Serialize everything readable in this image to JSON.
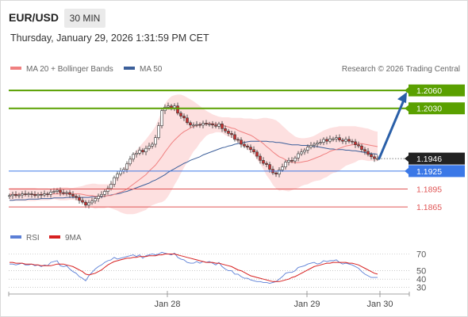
{
  "header": {
    "symbol": "EUR/USD",
    "timeframe": "30 MIN",
    "timestamp": "Thursday, January 29, 2026 1:31:59 PM CET"
  },
  "legend": {
    "ma20_label": "MA 20 + Bollinger Bands",
    "ma50_label": "MA 50",
    "copyright": "Research © 2026 Trading Central"
  },
  "rsi_legend": {
    "rsi_label": "RSI",
    "ma_label": "9MA"
  },
  "colors": {
    "resistance": "#5aa000",
    "pivot": "#3b78e7",
    "support": "#e05555",
    "last_price_bg": "#222222",
    "arrow": "#2a5fa8",
    "ma20": "#f08080",
    "ma50": "#3c5f9a",
    "bollinger_fill": "#fde0e0",
    "candle_up": "#ffffff",
    "candle_down": "#c93030",
    "rsi": "#5b7fd6",
    "rsi_ma": "#d72020"
  },
  "chart_data": {
    "type": "candlestick",
    "y_range": [
      1.184,
      1.208
    ],
    "price_levels": [
      {
        "label": "1.2060",
        "value": 1.206,
        "kind": "resistance"
      },
      {
        "label": "1.2030",
        "value": 1.203,
        "kind": "resistance"
      },
      {
        "label": "1.1946",
        "value": 1.1946,
        "kind": "last"
      },
      {
        "label": "1.1925",
        "value": 1.1925,
        "kind": "pivot"
      },
      {
        "label": "1.1895",
        "value": 1.1895,
        "kind": "support"
      },
      {
        "label": "1.1865",
        "value": 1.1865,
        "kind": "support"
      }
    ],
    "x_ticks": [
      {
        "label": "Jan 28",
        "index": 49
      },
      {
        "label": "Jan 29",
        "index": 93
      },
      {
        "label": "Jan 30",
        "index": 116
      }
    ],
    "candles_total": 117,
    "closes": [
      1.1884,
      1.1886,
      1.1884,
      1.1885,
      1.1887,
      1.1886,
      1.1887,
      1.1886,
      1.1884,
      1.1886,
      1.1885,
      1.1887,
      1.1886,
      1.189,
      1.1891,
      1.1893,
      1.1889,
      1.1888,
      1.1889,
      1.1886,
      1.1883,
      1.1881,
      1.1876,
      1.1873,
      1.1868,
      1.1872,
      1.1875,
      1.1879,
      1.1883,
      1.1886,
      1.1891,
      1.1896,
      1.1903,
      1.1914,
      1.192,
      1.1925,
      1.1928,
      1.1937,
      1.1945,
      1.1953,
      1.1955,
      1.196,
      1.1957,
      1.1963,
      1.1967,
      1.197,
      1.1981,
      1.2001,
      1.2026,
      1.2032,
      1.2034,
      1.2031,
      1.2034,
      1.2022,
      1.2017,
      1.2014,
      1.2006,
      1.2002,
      1.2002,
      1.2003,
      1.2002,
      1.2005,
      1.2004,
      1.2004,
      1.2002,
      1.2,
      1.2004,
      1.1996,
      1.1992,
      1.1988,
      1.1986,
      1.1978,
      1.1977,
      1.197,
      1.1967,
      1.1965,
      1.1961,
      1.1957,
      1.195,
      1.1943,
      1.1938,
      1.1936,
      1.1928,
      1.1922,
      1.192,
      1.1927,
      1.1932,
      1.194,
      1.1943,
      1.1942,
      1.1947,
      1.1954,
      1.1957,
      1.196,
      1.1965,
      1.1968,
      1.197,
      1.1972,
      1.1973,
      1.1978,
      1.1975,
      1.1979,
      1.1979,
      1.1981,
      1.1977,
      1.1975,
      1.1978,
      1.1975,
      1.1974,
      1.1969,
      1.1967,
      1.1961,
      1.1958,
      1.1953,
      1.1949,
      1.1946,
      1.1946
    ],
    "ma20": [
      1.1886,
      1.1886,
      1.1886,
      1.1886,
      1.1886,
      1.1886,
      1.1886,
      1.1886,
      1.1886,
      1.1886,
      1.1886,
      1.1886,
      1.1886,
      1.1886,
      1.1887,
      1.1887,
      1.1887,
      1.1887,
      1.1887,
      1.1887,
      1.1887,
      1.1887,
      1.1887,
      1.1886,
      1.1885,
      1.1884,
      1.1884,
      1.1883,
      1.1883,
      1.1883,
      1.1883,
      1.1884,
      1.1884,
      1.1886,
      1.1888,
      1.189,
      1.1892,
      1.1895,
      1.1899,
      1.1903,
      1.1907,
      1.1911,
      1.1915,
      1.1919,
      1.1925,
      1.193,
      1.1935,
      1.1942,
      1.1949,
      1.1957,
      1.1964,
      1.1971,
      1.1977,
      1.1982,
      1.1987,
      1.1991,
      1.1994,
      1.1997,
      1.2,
      1.2001,
      1.2003,
      1.2004,
      1.2005,
      1.2005,
      1.2004,
      1.2004,
      1.2003,
      1.2002,
      1.2,
      1.1999,
      1.1997,
      1.1996,
      1.1993,
      1.1991,
      1.1989,
      1.1987,
      1.1985,
      1.1982,
      1.1978,
      1.1975,
      1.1971,
      1.1966,
      1.1962,
      1.1957,
      1.1953,
      1.1949,
      1.1947,
      1.1944,
      1.1941,
      1.194,
      1.1939,
      1.1939,
      1.194,
      1.1941,
      1.1942,
      1.1944,
      1.1946,
      1.1948,
      1.195,
      1.1953,
      1.1955,
      1.1958,
      1.196,
      1.1961,
      1.1963,
      1.1965,
      1.1967,
      1.1968,
      1.1969,
      1.197,
      1.1971,
      1.1971,
      1.197,
      1.1969,
      1.1968,
      1.1967,
      1.1966
    ],
    "bollinger_upper": [
      1.1897,
      1.1897,
      1.1897,
      1.1897,
      1.1897,
      1.1897,
      1.1897,
      1.1897,
      1.1897,
      1.1896,
      1.1896,
      1.1896,
      1.1896,
      1.1895,
      1.1896,
      1.1897,
      1.1898,
      1.1898,
      1.1898,
      1.1897,
      1.1897,
      1.1898,
      1.1899,
      1.19,
      1.1902,
      1.1903,
      1.1904,
      1.1904,
      1.1903,
      1.1903,
      1.1903,
      1.1903,
      1.1905,
      1.1911,
      1.1917,
      1.1924,
      1.193,
      1.1937,
      1.1945,
      1.1953,
      1.196,
      1.1966,
      1.1972,
      1.1978,
      1.1985,
      1.1992,
      1.2,
      1.2012,
      1.2025,
      1.2038,
      1.2045,
      1.205,
      1.2052,
      1.2053,
      1.2053,
      1.2051,
      1.2048,
      1.2045,
      1.2042,
      1.2038,
      1.2034,
      1.203,
      1.2026,
      1.2023,
      1.202,
      1.2018,
      1.2016,
      1.2015,
      1.2015,
      1.2015,
      1.2014,
      1.2014,
      1.2014,
      1.2014,
      1.2013,
      1.2013,
      1.2013,
      1.2012,
      1.2012,
      1.2013,
      1.2014,
      1.2014,
      1.2013,
      1.2012,
      1.201,
      1.2006,
      1.2001,
      1.1996,
      1.1991,
      1.1987,
      1.1983,
      1.1981,
      1.198,
      1.198,
      1.1981,
      1.1982,
      1.1984,
      1.1987,
      1.199,
      1.1993,
      1.1995,
      1.1997,
      1.1998,
      1.1999,
      1.2,
      1.2,
      1.2,
      1.2,
      1.2,
      1.2,
      1.1999,
      1.1998,
      1.1997,
      1.1996,
      1.1994,
      1.1992,
      1.1991
    ],
    "bollinger_lower": [
      1.1875,
      1.1875,
      1.1875,
      1.1875,
      1.1875,
      1.1875,
      1.1875,
      1.1875,
      1.1875,
      1.1876,
      1.1876,
      1.1876,
      1.1876,
      1.1877,
      1.1878,
      1.1877,
      1.1876,
      1.1876,
      1.1876,
      1.1877,
      1.1877,
      1.1876,
      1.1875,
      1.1872,
      1.1868,
      1.1865,
      1.1864,
      1.1862,
      1.1863,
      1.1863,
      1.1863,
      1.1865,
      1.1863,
      1.1861,
      1.1859,
      1.1856,
      1.1854,
      1.1853,
      1.1853,
      1.1853,
      1.1854,
      1.1856,
      1.1858,
      1.186,
      1.1865,
      1.1868,
      1.187,
      1.1872,
      1.1873,
      1.1876,
      1.1883,
      1.1892,
      1.1902,
      1.1911,
      1.1921,
      1.1931,
      1.194,
      1.1949,
      1.1958,
      1.1964,
      1.1972,
      1.1978,
      1.1984,
      1.1987,
      1.1988,
      1.199,
      1.199,
      1.1989,
      1.1985,
      1.1983,
      1.198,
      1.1978,
      1.1972,
      1.1968,
      1.1965,
      1.1961,
      1.1957,
      1.1952,
      1.1944,
      1.1937,
      1.1928,
      1.1918,
      1.1911,
      1.1902,
      1.1896,
      1.1892,
      1.1893,
      1.1892,
      1.1891,
      1.1893,
      1.1895,
      1.1897,
      1.19,
      1.1902,
      1.1903,
      1.1906,
      1.1908,
      1.1909,
      1.191,
      1.1913,
      1.1915,
      1.1919,
      1.1922,
      1.1923,
      1.1926,
      1.193,
      1.1934,
      1.1936,
      1.1938,
      1.194,
      1.1943,
      1.1944,
      1.1943,
      1.1942,
      1.1942,
      1.1942,
      1.1941
    ],
    "ma50": [
      1.1876,
      1.1876,
      1.1877,
      1.1877,
      1.1877,
      1.1877,
      1.1878,
      1.1878,
      1.1878,
      1.1878,
      1.1879,
      1.1879,
      1.1879,
      1.1879,
      1.188,
      1.188,
      1.188,
      1.188,
      1.1881,
      1.1881,
      1.1881,
      1.1881,
      1.1881,
      1.1881,
      1.1881,
      1.1881,
      1.1882,
      1.1882,
      1.1882,
      1.1882,
      1.1883,
      1.1884,
      1.1885,
      1.1886,
      1.1887,
      1.1888,
      1.189,
      1.1891,
      1.1893,
      1.1895,
      1.1897,
      1.1899,
      1.1901,
      1.1903,
      1.1905,
      1.1908,
      1.191,
      1.1913,
      1.1916,
      1.1919,
      1.1923,
      1.1926,
      1.1929,
      1.1932,
      1.1935,
      1.1938,
      1.194,
      1.1943,
      1.1945,
      1.1947,
      1.1949,
      1.1952,
      1.1954,
      1.1956,
      1.1958,
      1.196,
      1.1962,
      1.1964,
      1.1965,
      1.1967,
      1.1968,
      1.197,
      1.1971,
      1.1972,
      1.1973,
      1.1974,
      1.1975,
      1.1975,
      1.1975,
      1.1975,
      1.1975,
      1.1975,
      1.1974,
      1.1974,
      1.1973,
      1.1973,
      1.1972,
      1.1971,
      1.197,
      1.1969,
      1.1969,
      1.1969,
      1.1968,
      1.1968,
      1.1968,
      1.1967,
      1.1966,
      1.1966,
      1.1965,
      1.1964,
      1.1963,
      1.1962,
      1.1962,
      1.1961,
      1.1961,
      1.1961,
      1.196,
      1.196,
      1.1959,
      1.1959,
      1.1958,
      1.1957,
      1.1956,
      1.1955,
      1.1954,
      1.1954,
      1.1953
    ],
    "rsi": {
      "y_range": [
        25,
        80
      ],
      "ticks": [
        70,
        50,
        40,
        30
      ],
      "rsi_values": [
        58,
        58,
        57,
        58,
        59,
        57,
        57,
        58,
        56,
        57,
        55,
        57,
        56,
        60,
        61,
        62,
        56,
        55,
        56,
        52,
        49,
        47,
        43,
        41,
        38,
        44,
        48,
        52,
        55,
        57,
        60,
        62,
        63,
        66,
        64,
        65,
        66,
        67,
        68,
        69,
        67,
        69,
        65,
        68,
        69,
        70,
        69,
        70,
        72,
        71,
        70,
        69,
        71,
        66,
        64,
        63,
        60,
        59,
        59,
        61,
        59,
        61,
        60,
        61,
        59,
        57,
        60,
        55,
        52,
        50,
        50,
        46,
        46,
        43,
        41,
        41,
        39,
        38,
        37,
        37,
        36,
        36,
        35,
        36,
        37,
        40,
        43,
        47,
        48,
        48,
        50,
        54,
        55,
        56,
        58,
        59,
        60,
        58,
        59,
        62,
        61,
        62,
        62,
        63,
        60,
        58,
        59,
        58,
        57,
        55,
        53,
        49,
        46,
        44,
        42,
        42,
        42
      ],
      "ma_values": [
        60,
        60,
        59,
        59,
        59,
        58,
        58,
        58,
        57,
        57,
        56,
        56,
        56,
        56,
        57,
        58,
        58,
        58,
        57,
        56,
        55,
        53,
        51,
        49,
        46,
        45,
        46,
        47,
        49,
        51,
        54,
        57,
        59,
        61,
        62,
        63,
        64,
        65,
        65,
        66,
        66,
        67,
        67,
        67,
        68,
        68,
        68,
        69,
        69,
        70,
        70,
        70,
        70,
        69,
        68,
        67,
        66,
        65,
        64,
        63,
        62,
        61,
        60,
        60,
        60,
        59,
        59,
        58,
        57,
        56,
        55,
        53,
        51,
        50,
        48,
        46,
        44,
        43,
        42,
        41,
        40,
        39,
        38,
        37,
        37,
        37,
        38,
        39,
        40,
        42,
        43,
        45,
        47,
        49,
        51,
        53,
        55,
        56,
        57,
        58,
        59,
        59,
        60,
        60,
        60,
        60,
        60,
        59,
        59,
        58,
        57,
        55,
        53,
        51,
        49,
        47,
        46
      ]
    }
  }
}
